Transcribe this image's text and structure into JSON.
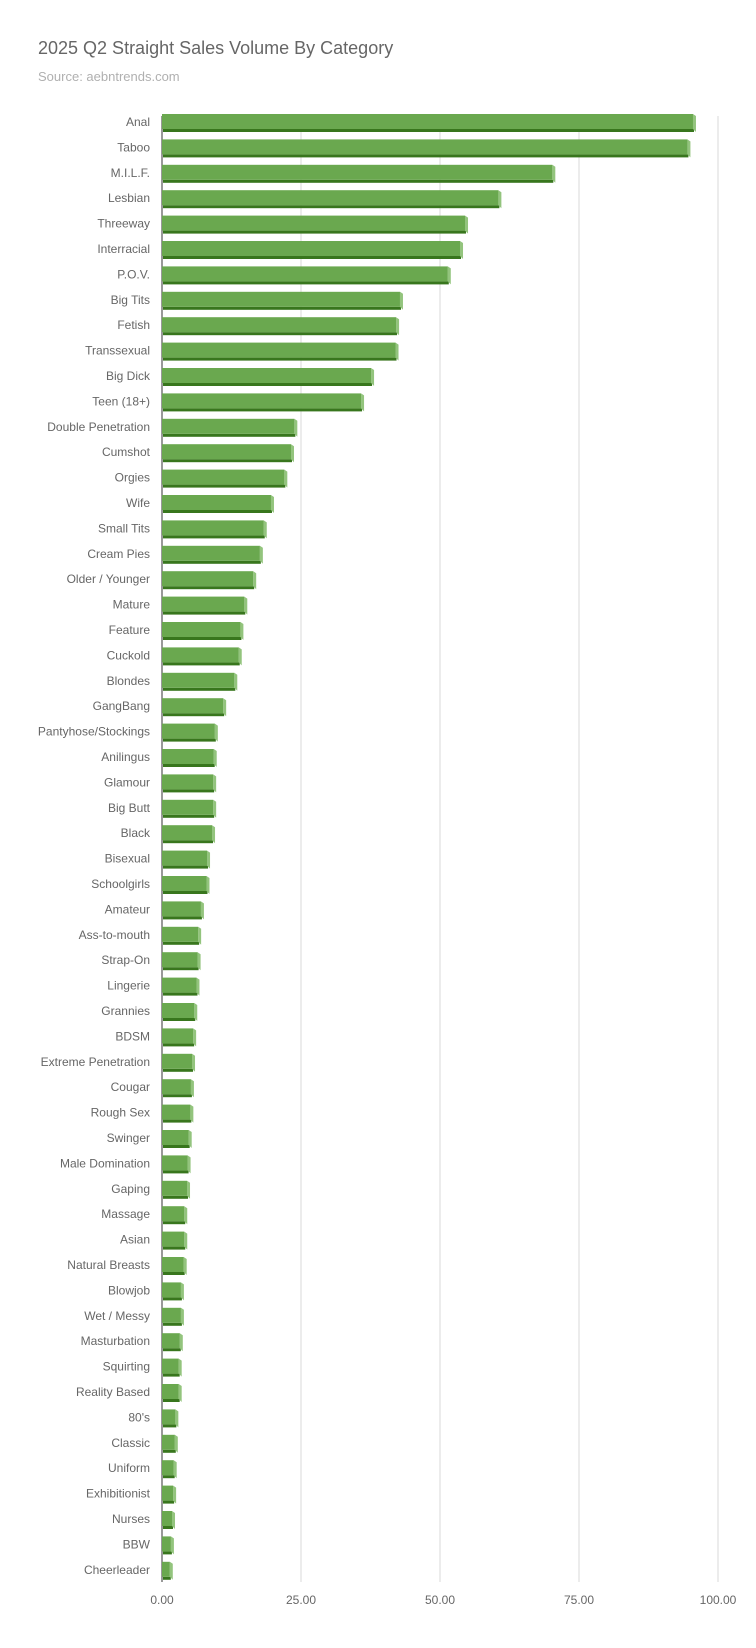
{
  "chart_data": {
    "type": "bar",
    "orientation": "horizontal",
    "title": "2025 Q2 Straight Sales Volume By Category",
    "subtitle": "Source: aebntrends.com",
    "xlabel": "",
    "ylabel": "",
    "xlim": [
      0,
      100
    ],
    "x_ticks": [
      "0.00",
      "25.00",
      "50.00",
      "75.00",
      "100.00"
    ],
    "grid": true,
    "legend": "none",
    "bar_color": "#6aa84f",
    "bar_shadow_color": "#38761d",
    "categories": [
      "Anal",
      "Taboo",
      "M.I.L.F.",
      "Lesbian",
      "Threeway",
      "Interracial",
      "P.O.V.",
      "Big Tits",
      "Fetish",
      "Transsexual",
      "Big Dick",
      "Teen (18+)",
      "Double Penetration",
      "Cumshot",
      "Orgies",
      "Wife",
      "Small Tits",
      "Cream Pies",
      "Older / Younger",
      "Mature",
      "Feature",
      "Cuckold",
      "Blondes",
      "GangBang",
      "Pantyhose/Stockings",
      "Anilingus",
      "Glamour",
      "Big Butt",
      "Black",
      "Bisexual",
      "Schoolgirls",
      "Amateur",
      "Ass-to-mouth",
      "Strap-On",
      "Lingerie",
      "Grannies",
      "BDSM",
      "Extreme Penetration",
      "Cougar",
      "Rough Sex",
      "Swinger",
      "Male Domination",
      "Gaping",
      "Massage",
      "Asian",
      "Natural Breasts",
      "Blowjob",
      "Wet / Messy",
      "Masturbation",
      "Squirting",
      "Reality Based",
      "80's",
      "Classic",
      "Uniform",
      "Exhibitionist",
      "Nurses",
      "BBW",
      "Cheerleader"
    ],
    "values": [
      95.5,
      94.5,
      70.2,
      60.5,
      54.5,
      53.6,
      51.4,
      42.8,
      42.1,
      42.0,
      37.6,
      35.8,
      23.8,
      23.2,
      22.0,
      19.6,
      18.3,
      17.6,
      16.4,
      14.8,
      14.1,
      13.8,
      13.0,
      11.0,
      9.5,
      9.3,
      9.2,
      9.2,
      9.0,
      8.1,
      8.0,
      7.0,
      6.5,
      6.4,
      6.2,
      5.8,
      5.6,
      5.4,
      5.2,
      5.1,
      4.8,
      4.6,
      4.5,
      4.0,
      4.0,
      3.9,
      3.4,
      3.4,
      3.2,
      3.0,
      3.0,
      2.4,
      2.3,
      2.1,
      2.0,
      1.8,
      1.6,
      1.4
    ]
  }
}
